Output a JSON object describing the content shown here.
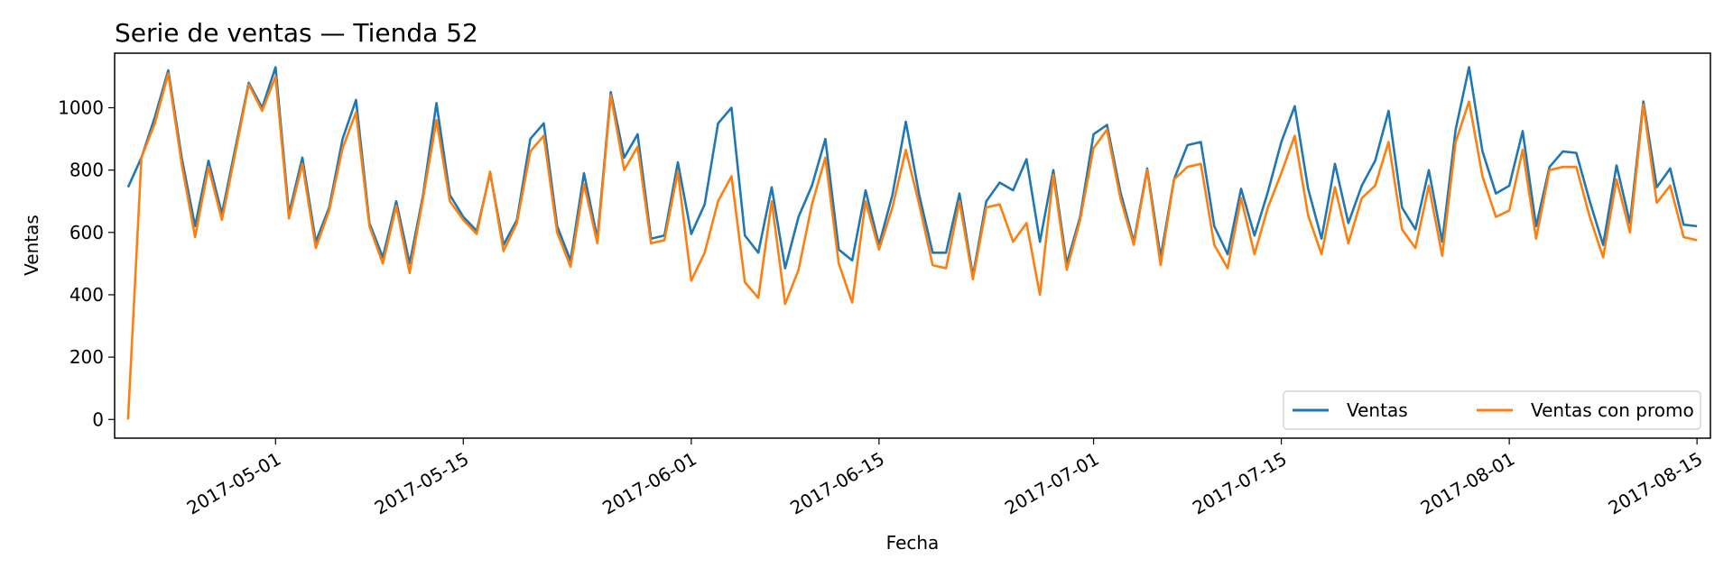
{
  "chart_data": {
    "type": "line",
    "title": "Serie de ventas — Tienda 52",
    "xlabel": "Fecha",
    "ylabel": "Ventas",
    "x_start": "2017-04-20",
    "x_end": "2017-08-15",
    "xlim": [
      "2017-04-19",
      "2017-08-16"
    ],
    "ylim": [
      -60,
      1175
    ],
    "x_ticks": [
      "2017-05-01",
      "2017-05-15",
      "2017-06-01",
      "2017-06-15",
      "2017-07-01",
      "2017-07-15",
      "2017-08-01",
      "2017-08-15"
    ],
    "y_ticks": [
      0,
      200,
      400,
      600,
      800,
      1000
    ],
    "grid": false,
    "legend": {
      "placement": "lower-right",
      "columns": 2
    },
    "series": [
      {
        "name": "Ventas",
        "color": "#1f77b4",
        "values": [
          745,
          840,
          970,
          1120,
          840,
          620,
          830,
          660,
          870,
          1080,
          1000,
          1130,
          660,
          840,
          570,
          680,
          900,
          1025,
          630,
          520,
          700,
          500,
          720,
          1015,
          720,
          650,
          605,
          790,
          560,
          640,
          900,
          950,
          620,
          510,
          790,
          580,
          1050,
          840,
          915,
          580,
          590,
          825,
          595,
          690,
          950,
          1000,
          590,
          535,
          745,
          485,
          650,
          750,
          900,
          545,
          510,
          735,
          560,
          720,
          955,
          720,
          535,
          535,
          725,
          460,
          700,
          760,
          735,
          835,
          570,
          800,
          500,
          650,
          915,
          945,
          730,
          570,
          805,
          520,
          770,
          880,
          890,
          620,
          530,
          740,
          590,
          730,
          890,
          1005,
          740,
          580,
          820,
          630,
          750,
          830,
          990,
          680,
          610,
          800,
          570,
          930,
          1130,
          860,
          725,
          750,
          925,
          620,
          810,
          860,
          855,
          700,
          560,
          815,
          630,
          1020,
          745,
          805,
          625,
          620
        ]
      },
      {
        "name": "Ventas con promo",
        "color": "#ff7f0e",
        "values": [
          0,
          840,
          950,
          1110,
          820,
          585,
          810,
          640,
          855,
          1075,
          990,
          1100,
          645,
          820,
          550,
          670,
          870,
          985,
          620,
          500,
          685,
          470,
          710,
          960,
          700,
          640,
          595,
          795,
          540,
          630,
          860,
          910,
          600,
          490,
          755,
          565,
          1040,
          800,
          875,
          565,
          575,
          795,
          445,
          535,
          700,
          780,
          440,
          390,
          700,
          370,
          480,
          690,
          840,
          500,
          375,
          700,
          545,
          680,
          865,
          690,
          495,
          485,
          700,
          450,
          680,
          690,
          570,
          630,
          400,
          785,
          480,
          640,
          870,
          930,
          710,
          560,
          800,
          495,
          770,
          810,
          820,
          560,
          485,
          710,
          530,
          680,
          790,
          910,
          655,
          530,
          745,
          565,
          710,
          750,
          890,
          610,
          550,
          750,
          525,
          890,
          1020,
          780,
          650,
          670,
          865,
          580,
          800,
          810,
          810,
          650,
          520,
          770,
          600,
          1010,
          695,
          750,
          585,
          575
        ]
      }
    ]
  }
}
